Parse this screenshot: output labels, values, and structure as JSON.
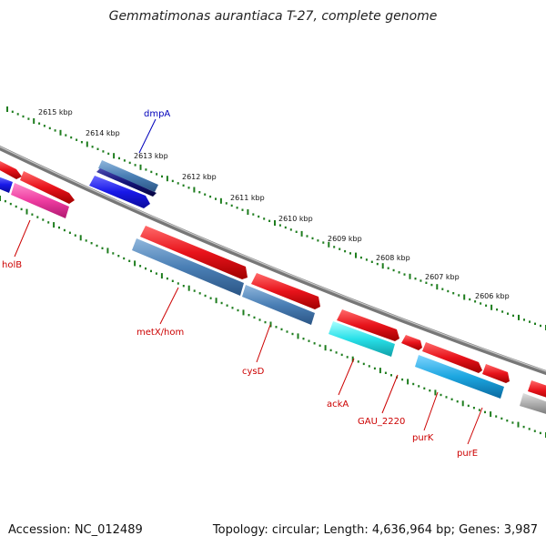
{
  "title": "Gemmatimonas aurantiaca T-27, complete genome",
  "footer": {
    "accession": "Accession: NC_012489",
    "topology": "Topology: circular; Length: 4,636,964 bp; Genes: 3,987"
  },
  "ruler": {
    "color": "#1e7d1e",
    "ticks": [
      "2615 kbp",
      "2614 kbp",
      "2613 kbp",
      "2612 kbp",
      "2611 kbp",
      "2610 kbp",
      "2609 kbp",
      "2608 kbp",
      "2607 kbp",
      "2606 kbp"
    ]
  },
  "genes": {
    "dmpA": "dmpA",
    "holB": "holB",
    "metX": "metX/hom",
    "cysD": "cysD",
    "ackA": "ackA",
    "gau": "GAU_2220",
    "purK": "purK",
    "purE": "purE"
  },
  "colors": {
    "forward": "#e8131b",
    "reverse_blue": "#4a7fb5",
    "reverse_navy": "#141478",
    "reverse_brightblue": "#1818e8",
    "magenta": "#ee3ca0",
    "cyan": "#28e0e8",
    "skyblue": "#1ca6e0",
    "grey": "#a8a8a8",
    "label_red": "#cc0000",
    "label_blue": "#0000bb"
  }
}
